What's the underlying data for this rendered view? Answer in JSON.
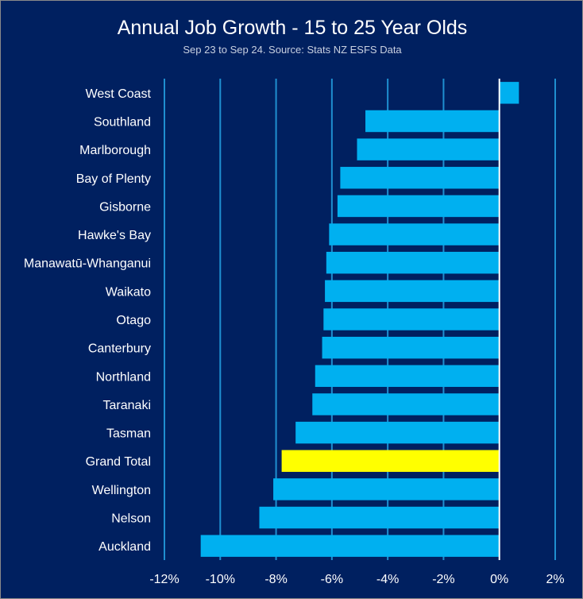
{
  "chart_data": {
    "type": "bar",
    "orientation": "horizontal",
    "title": "Annual Job Growth - 15 to 25 Year Olds",
    "subtitle": "Sep 23 to Sep 24. Source: Stats NZ ESFS Data",
    "xlabel": "",
    "ylabel": "",
    "xlim": [
      -12,
      2
    ],
    "xticks": [
      -12,
      -10,
      -8,
      -6,
      -4,
      -2,
      0,
      2
    ],
    "xtick_labels": [
      "-12%",
      "-10%",
      "-8%",
      "-6%",
      "-4%",
      "-2%",
      "0%",
      "2%"
    ],
    "grid": "vertical",
    "categories": [
      "West Coast",
      "Southland",
      "Marlborough",
      "Bay of Plenty",
      "Gisborne",
      "Hawke's Bay",
      "Manawatū-Whanganui",
      "Waikato",
      "Otago",
      "Canterbury",
      "Northland",
      "Taranaki",
      "Tasman",
      "Grand Total",
      "Wellington",
      "Nelson",
      "Auckland"
    ],
    "values": [
      0.7,
      -4.8,
      -5.1,
      -5.7,
      -5.8,
      -6.1,
      -6.2,
      -6.25,
      -6.3,
      -6.35,
      -6.6,
      -6.7,
      -7.3,
      -7.8,
      -8.1,
      -8.6,
      -10.7
    ],
    "highlight_category": "Grand Total",
    "colors": {
      "background": "#002060",
      "bar": "#00B0F0",
      "highlight": "#FFFF00",
      "grid": "#1F8FD0",
      "zero_line": "#ffffff"
    }
  }
}
